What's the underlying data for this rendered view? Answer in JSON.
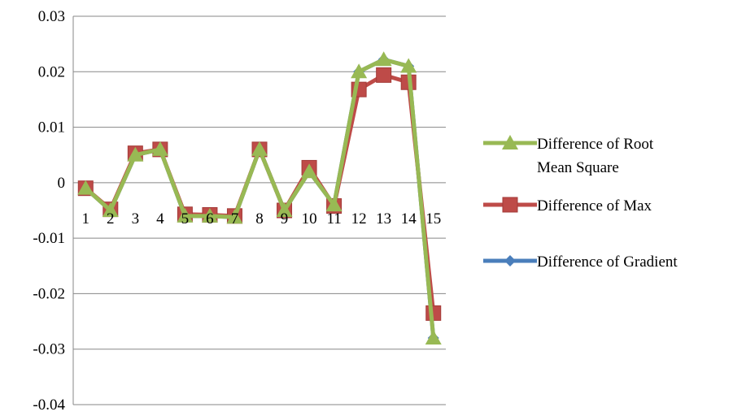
{
  "chart_data": {
    "type": "line",
    "categories": [
      "1",
      "2",
      "3",
      "4",
      "5",
      "6",
      "7",
      "8",
      "9",
      "10",
      "11",
      "12",
      "13",
      "14",
      "15"
    ],
    "ylim": [
      -0.04,
      0.03
    ],
    "yticks": [
      "0.03",
      "0.02",
      "0.01",
      "0",
      "-0.01",
      "-0.02",
      "-0.03",
      "-0.04"
    ],
    "grid": true,
    "legend_position": "right",
    "series": [
      {
        "name": "Difference of Gradient",
        "color": "#4a7ebb",
        "marker": "diamond",
        "values": [
          -0.001,
          -0.005,
          0.005,
          0.006,
          -0.006,
          -0.006,
          -0.0062,
          0.006,
          -0.005,
          0.002,
          -0.004,
          0.02,
          0.0222,
          0.021,
          -0.028
        ]
      },
      {
        "name": "Difference of Max",
        "color": "#be4b48",
        "marker": "square",
        "values": [
          -0.001,
          -0.0048,
          0.0053,
          0.006,
          -0.0057,
          -0.0058,
          -0.006,
          0.006,
          -0.005,
          0.0027,
          -0.0042,
          0.0168,
          0.0194,
          0.0181,
          -0.0235
        ]
      },
      {
        "name": "Difference of Root Mean Square",
        "legend_lines": [
          "Difference of Root",
          "Mean Square"
        ],
        "color": "#98b954",
        "marker": "triangle",
        "values": [
          -0.001,
          -0.005,
          0.005,
          0.006,
          -0.006,
          -0.006,
          -0.0062,
          0.006,
          -0.005,
          0.002,
          -0.004,
          0.02,
          0.0222,
          0.021,
          -0.028
        ]
      }
    ]
  }
}
